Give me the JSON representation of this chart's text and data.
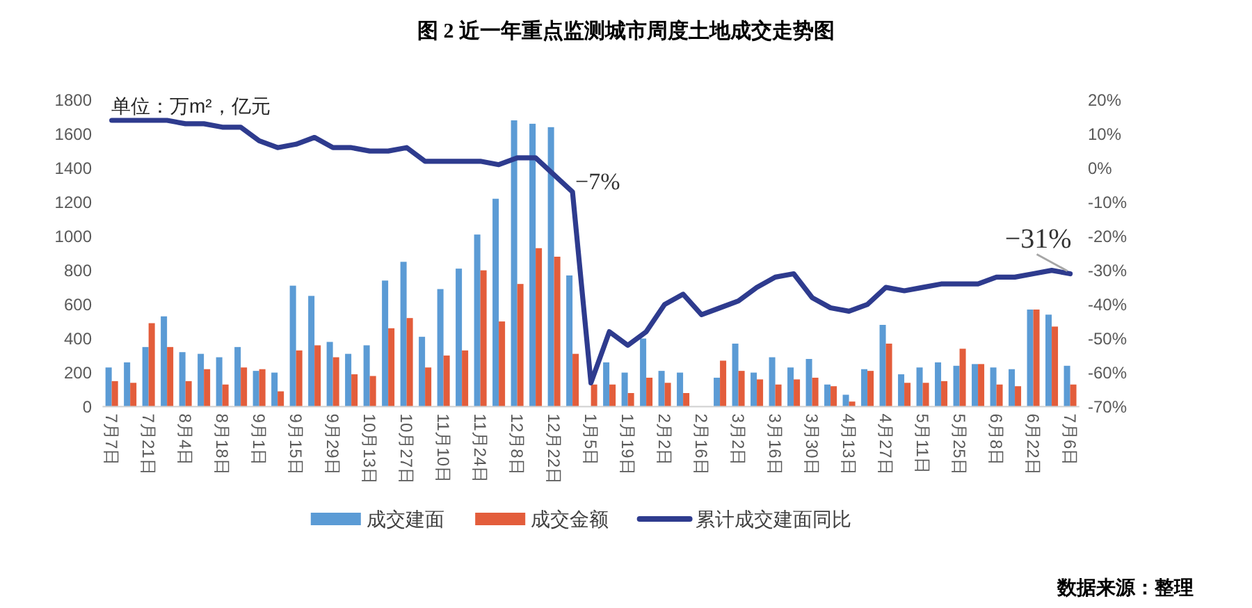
{
  "chart_data": {
    "type": "bar",
    "title": "图 2 近一年重点监测城市周度土地成交走势图",
    "ylabel": "单位：万m²，亿元",
    "categories": [
      "7月7日",
      null,
      "7月21日",
      null,
      "8月4日",
      null,
      "8月18日",
      null,
      "9月1日",
      null,
      "9月15日",
      null,
      "9月29日",
      null,
      "10月13日",
      null,
      "10月27日",
      null,
      "11月10日",
      null,
      "11月24日",
      null,
      "12月8日",
      null,
      "12月22日",
      null,
      "1月5日",
      null,
      "1月19日",
      null,
      "2月2日",
      null,
      "2月16日",
      null,
      "3月2日",
      null,
      "3月16日",
      null,
      "3月30日",
      null,
      "4月13日",
      null,
      "4月27日",
      null,
      "5月11日",
      null,
      "5月25日",
      null,
      "6月8日",
      null,
      "6月22日",
      null,
      "7月6日"
    ],
    "series": [
      {
        "name": "成交建面",
        "color": "#5b9bd5",
        "values": [
          230,
          260,
          350,
          530,
          320,
          310,
          290,
          350,
          210,
          200,
          710,
          650,
          380,
          310,
          360,
          740,
          850,
          410,
          690,
          810,
          1010,
          1220,
          1680,
          1660,
          1640,
          770,
          null,
          260,
          200,
          400,
          210,
          200,
          null,
          170,
          370,
          200,
          290,
          230,
          280,
          130,
          70,
          220,
          480,
          190,
          230,
          260,
          240,
          250,
          230,
          220,
          570,
          540,
          240
        ]
      },
      {
        "name": "成交金额",
        "color": "#e35d3b",
        "values": [
          150,
          140,
          490,
          350,
          150,
          220,
          130,
          230,
          220,
          90,
          330,
          360,
          290,
          190,
          180,
          460,
          520,
          230,
          300,
          330,
          800,
          500,
          720,
          930,
          880,
          310,
          130,
          130,
          80,
          170,
          140,
          80,
          null,
          270,
          210,
          160,
          130,
          160,
          170,
          120,
          30,
          210,
          370,
          140,
          140,
          150,
          340,
          250,
          130,
          120,
          570,
          470,
          130
        ]
      },
      {
        "name": "累计成交建面同比",
        "type": "line",
        "axis": "y2",
        "color": "#2e3b8e",
        "values": [
          14,
          14,
          14,
          14,
          13,
          13,
          12,
          12,
          8,
          6,
          7,
          9,
          6,
          6,
          5,
          5,
          6,
          2,
          2,
          2,
          2,
          1,
          3,
          3,
          -2,
          -7,
          -63,
          -48,
          -52,
          -48,
          -40,
          -37,
          -43,
          -41,
          -39,
          -35,
          -32,
          -31,
          -38,
          -41,
          -42,
          -40,
          -35,
          -36,
          -35,
          -34,
          -34,
          -34,
          -32,
          -32,
          -31,
          -30,
          -31
        ],
        "value_labels": [
          null,
          null,
          null,
          null,
          null,
          null,
          null,
          null,
          null,
          null,
          null,
          null,
          null,
          null,
          null,
          null,
          null,
          null,
          null,
          null,
          null,
          null,
          null,
          null,
          null,
          "−7%",
          null,
          null,
          null,
          null,
          null,
          null,
          null,
          null,
          null,
          null,
          null,
          null,
          null,
          null,
          null,
          null,
          null,
          null,
          null,
          null,
          null,
          null,
          null,
          null,
          null,
          null,
          "−31%"
        ]
      }
    ],
    "ylim": [
      0,
      1800
    ],
    "yticks": [
      0,
      200,
      400,
      600,
      800,
      1000,
      1200,
      1400,
      1600,
      1800
    ],
    "y2lim": [
      -70,
      20
    ],
    "y2ticks": [
      {
        "value": -70,
        "label": "-70%"
      },
      {
        "value": -60,
        "label": "-60%"
      },
      {
        "value": -50,
        "label": "-50%"
      },
      {
        "value": -40,
        "label": "-40%"
      },
      {
        "value": -30,
        "label": "-30%"
      },
      {
        "value": -20,
        "label": "-20%"
      },
      {
        "value": -10,
        "label": "-10%"
      },
      {
        "value": 0,
        "label": "0%"
      },
      {
        "value": 10,
        "label": "10%"
      },
      {
        "value": 20,
        "label": "20%"
      }
    ],
    "legend": "bottom",
    "annotations": [
      "数据来源：整理"
    ]
  }
}
